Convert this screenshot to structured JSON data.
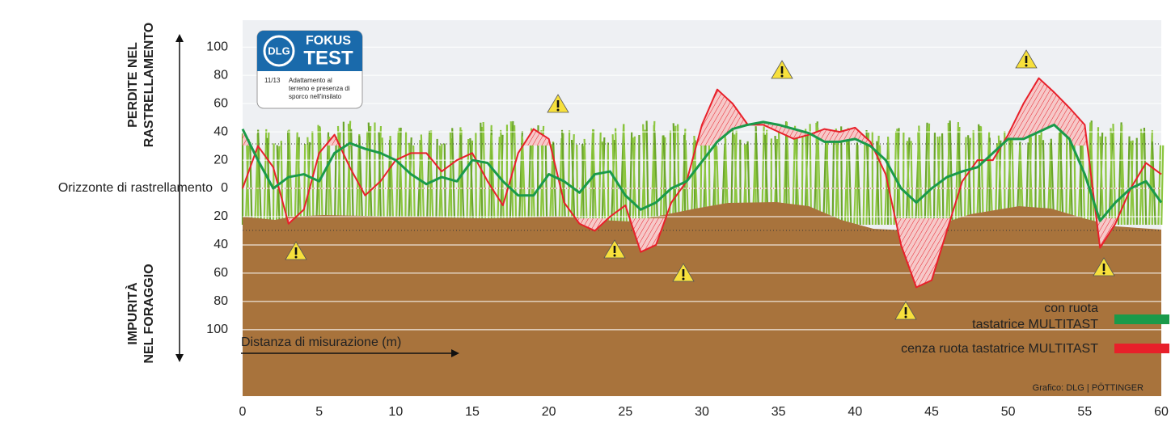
{
  "chart_data": {
    "type": "line",
    "y_label_top": [
      "PERDITE NEL",
      "RASTRELLAMENTO"
    ],
    "y_label_bottom": [
      "IMPURITÀ",
      "NEL FORAGGIO"
    ],
    "horizon_label": "Orizzonte di rastrellamento",
    "x_label": "Distanza di misurazione (m)",
    "source": "Grafico: DLG | PÖTTINGER",
    "logo": {
      "brand": "DLG",
      "line1": "FOKUS",
      "line2": "TEST",
      "issue": "11/13",
      "text": [
        "Adattamento al",
        "terreno e presenza di",
        "sporco nell'insilato"
      ]
    },
    "x": [
      0,
      1,
      2,
      3,
      4,
      5,
      6,
      7,
      8,
      9,
      10,
      11,
      12,
      13,
      14,
      15,
      16,
      17,
      18,
      19,
      20,
      21,
      22,
      23,
      24,
      25,
      26,
      27,
      28,
      29,
      30,
      31,
      32,
      33,
      34,
      35,
      36,
      37,
      38,
      39,
      40,
      41,
      42,
      43,
      44,
      45,
      46,
      47,
      48,
      49,
      50,
      51,
      52,
      53,
      54,
      55,
      56,
      57,
      58,
      59,
      60
    ],
    "series": [
      {
        "name": "con ruota tastatrice MULTITAST",
        "color": "#1a9a4a",
        "values": [
          42,
          20,
          0,
          8,
          10,
          5,
          25,
          32,
          28,
          25,
          20,
          10,
          3,
          8,
          5,
          20,
          18,
          5,
          -5,
          -5,
          10,
          5,
          -3,
          10,
          12,
          -5,
          -15,
          -10,
          0,
          5,
          19,
          33,
          42,
          45,
          47,
          45,
          42,
          39,
          33,
          33,
          35,
          30,
          20,
          0,
          -10,
          0,
          8,
          12,
          15,
          25,
          35,
          35,
          40,
          45,
          35,
          10,
          -23,
          -10,
          0,
          5,
          -10
        ]
      },
      {
        "name": "cenza ruota tastatrice MULTITAST",
        "color": "#e8202a",
        "values": [
          0,
          30,
          15,
          -25,
          -15,
          25,
          38,
          15,
          -5,
          5,
          20,
          25,
          25,
          12,
          20,
          25,
          5,
          -12,
          25,
          42,
          35,
          -10,
          -25,
          -30,
          -20,
          -12,
          -45,
          -40,
          -10,
          5,
          45,
          70,
          60,
          45,
          45,
          40,
          35,
          38,
          42,
          40,
          43,
          33,
          10,
          -40,
          -70,
          -65,
          -30,
          5,
          20,
          20,
          38,
          60,
          78,
          68,
          57,
          45,
          -42,
          -25,
          0,
          18,
          10
        ]
      }
    ],
    "xlim": [
      0,
      60
    ],
    "xticks": [
      0,
      5,
      10,
      15,
      20,
      25,
      30,
      35,
      40,
      45,
      50,
      55,
      60
    ],
    "ylim": [
      -147,
      119
    ],
    "yticks": [
      100,
      80,
      60,
      40,
      20,
      0,
      {
        "value": -20,
        "label": "20"
      },
      {
        "value": -40,
        "label": "40"
      },
      {
        "value": -60,
        "label": "60"
      },
      {
        "value": -80,
        "label": "80"
      },
      {
        "value": -100,
        "label": "100"
      }
    ],
    "grid": true
  }
}
